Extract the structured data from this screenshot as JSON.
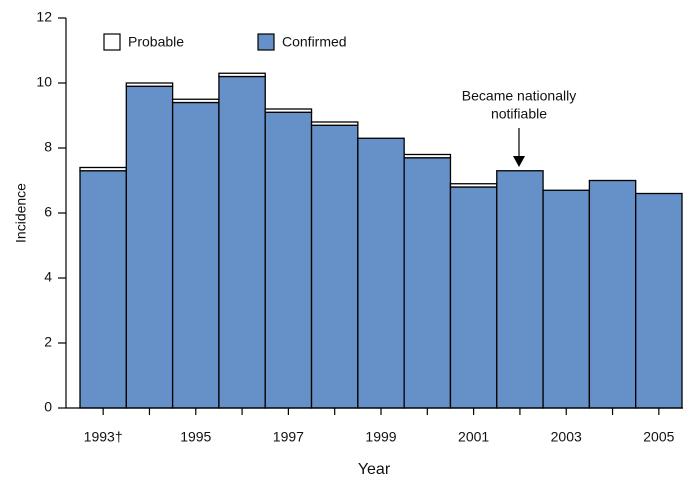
{
  "chart_data": {
    "type": "stacked_bar",
    "x_label": "Year",
    "y_label": "Incidence",
    "categories": [
      "1993†",
      null,
      "1995",
      null,
      "1997",
      null,
      "1999",
      null,
      "2001",
      null,
      "2003",
      null,
      "2005"
    ],
    "series": [
      {
        "name": "Confirmed",
        "color": "#6690c8",
        "values": [
          7.3,
          9.9,
          9.4,
          10.2,
          9.1,
          8.7,
          8.3,
          7.7,
          6.8,
          7.3,
          6.7,
          7.0,
          6.6
        ]
      },
      {
        "name": "Probable",
        "color": "#ffffff",
        "values": [
          0.1,
          0.1,
          0.1,
          0.1,
          0.1,
          0.1,
          0,
          0.1,
          0.1,
          0,
          0,
          0,
          0
        ]
      }
    ],
    "ylim": [
      0,
      12
    ],
    "yticks": [
      0,
      2,
      4,
      6,
      8,
      10,
      12
    ],
    "annotation": [
      "Became nationally",
      "notifiable"
    ]
  }
}
